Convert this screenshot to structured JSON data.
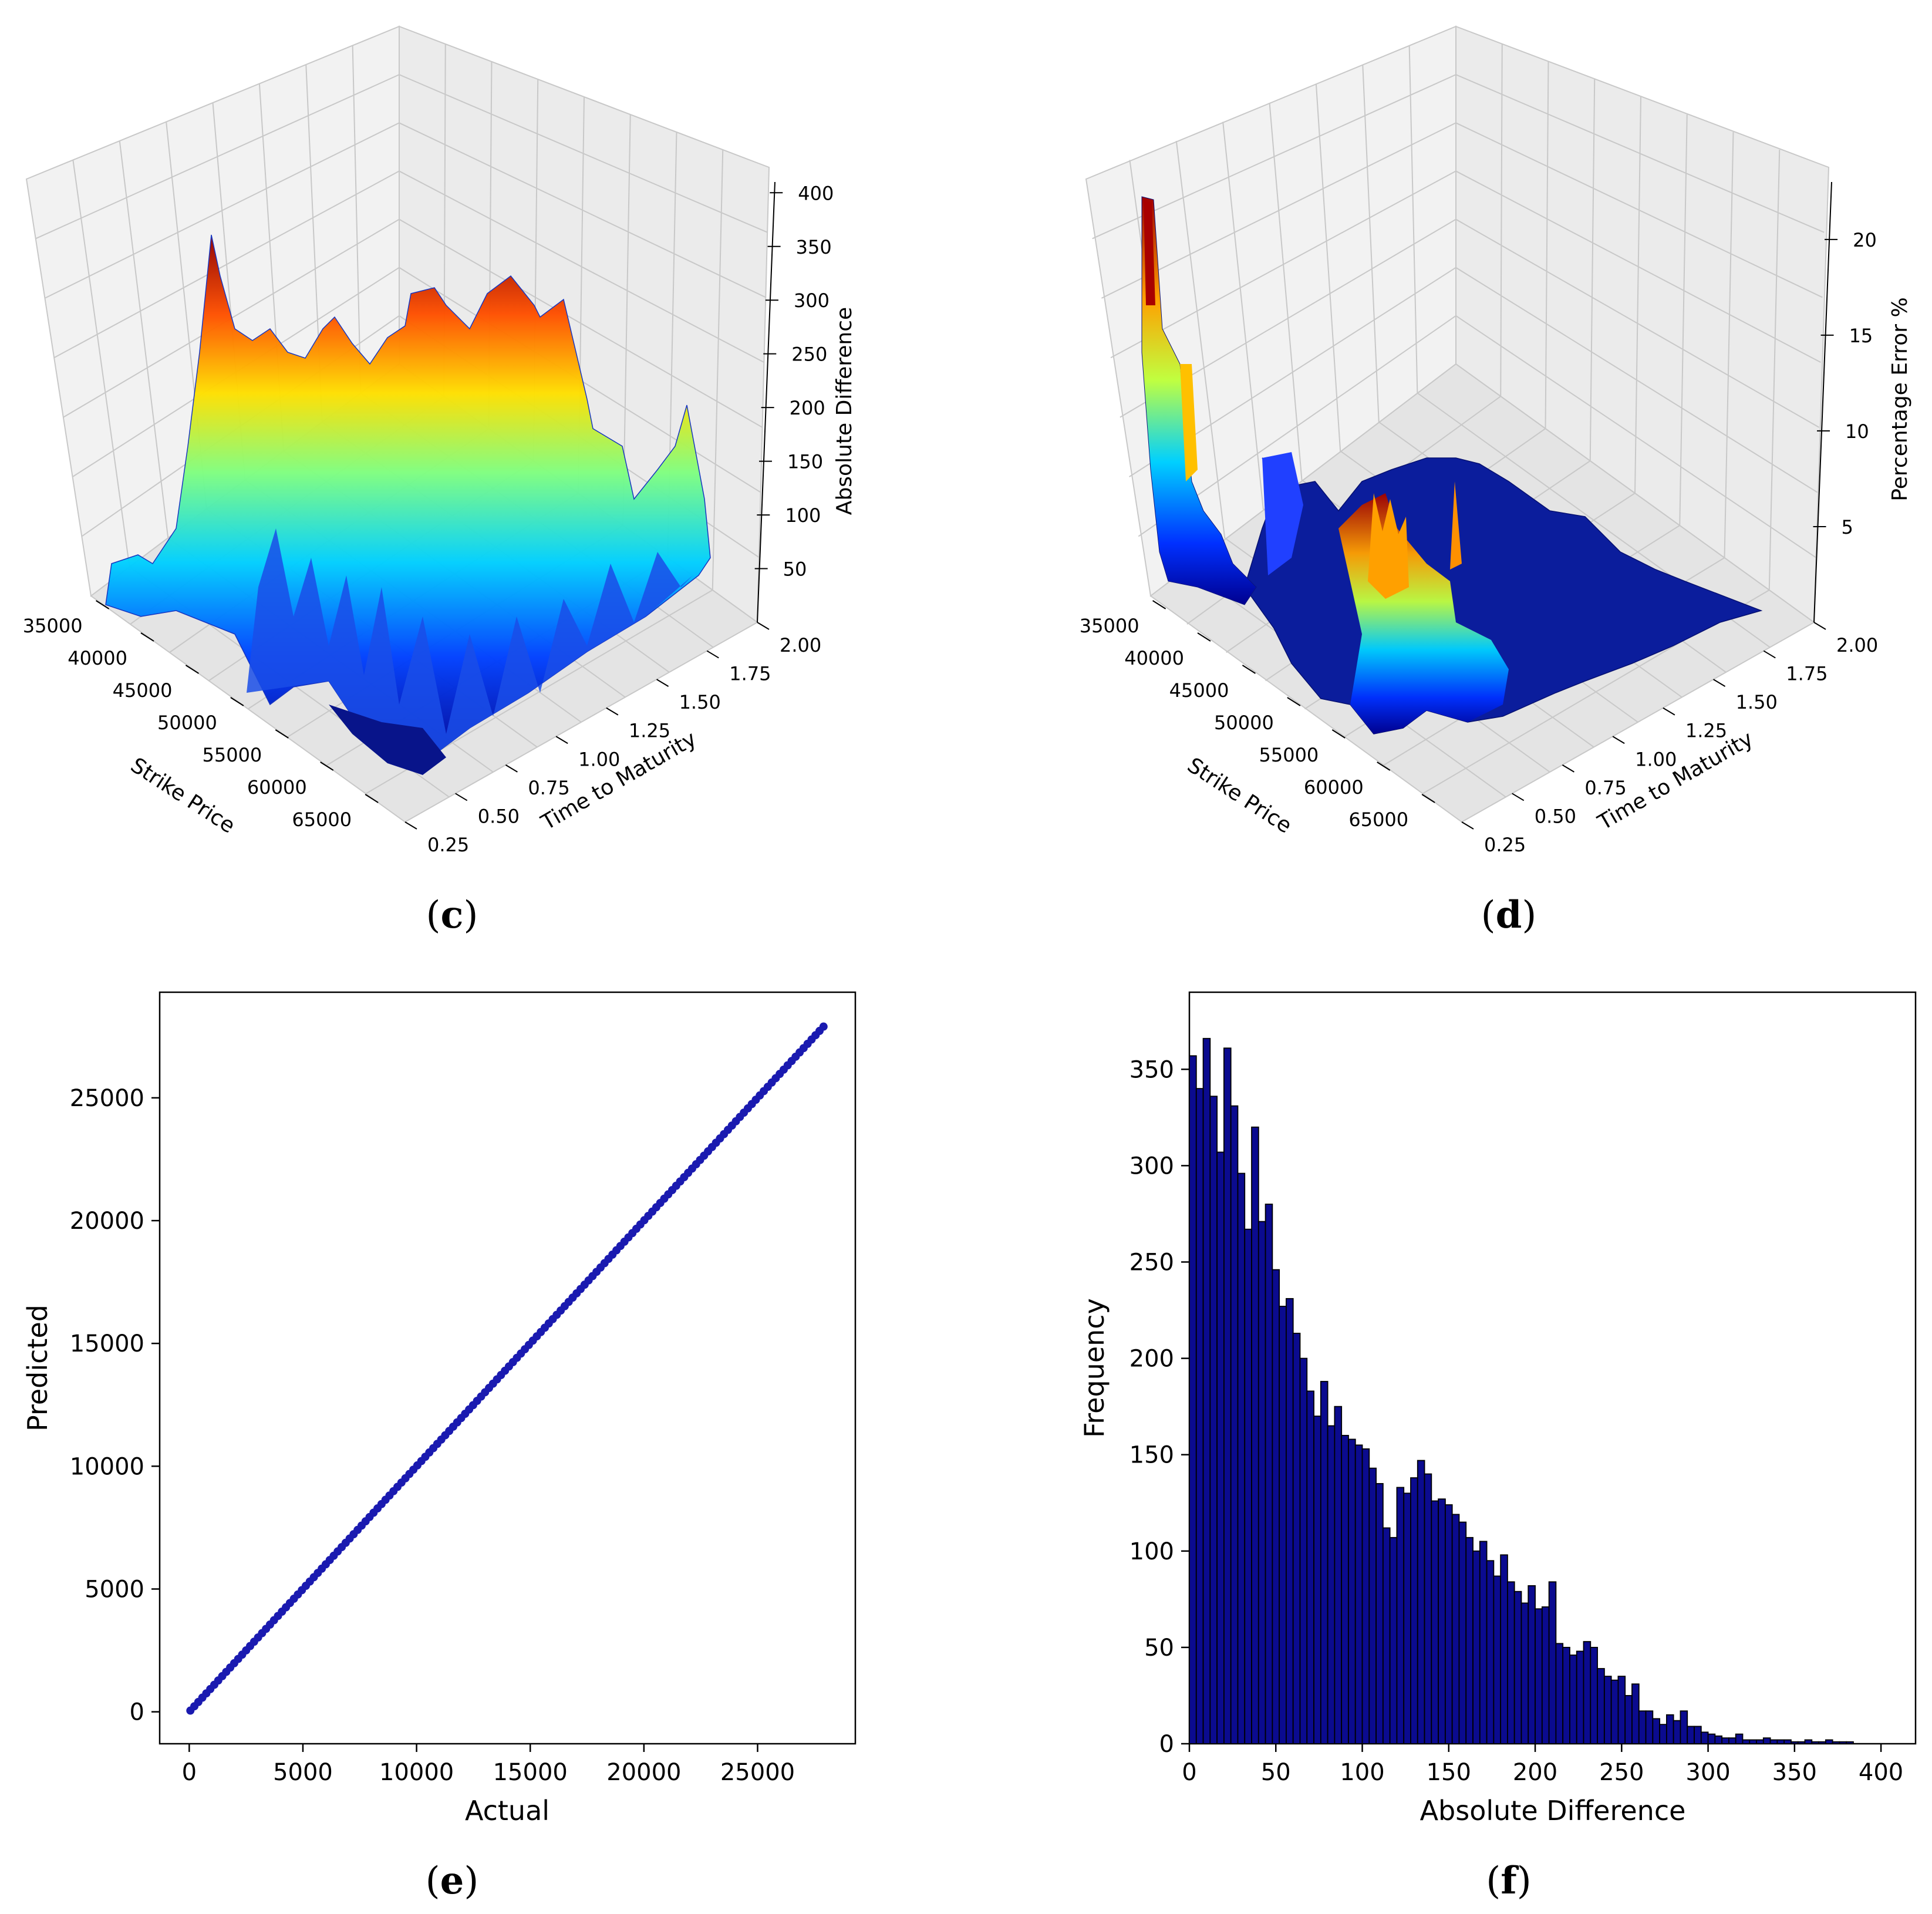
{
  "panels": {
    "c": {
      "caption_open": "(",
      "caption_letter": "c",
      "caption_close": ")"
    },
    "d": {
      "caption_open": "(",
      "caption_letter": "d",
      "caption_close": ")"
    },
    "e": {
      "caption_open": "(",
      "caption_letter": "e",
      "caption_close": ")"
    },
    "f": {
      "caption_open": "(",
      "caption_letter": "f",
      "caption_close": ")"
    }
  },
  "colors": {
    "scatter": "#1a1ab0",
    "bars": "#0b0b8f",
    "bar_edge": "#000000",
    "pane_grid": "#c8c8c8",
    "pane_fill": "#f2f2f2"
  },
  "chart_data": [
    {
      "id": "c",
      "type": "surface3d",
      "title": "",
      "xlabel": "Strike Price",
      "ylabel": "Time to Maturity",
      "zlabel": "Absolute Difference",
      "xticks": [
        "35000",
        "40000",
        "45000",
        "50000",
        "55000",
        "60000",
        "65000"
      ],
      "yticks": [
        "0.25",
        "0.50",
        "0.75",
        "1.00",
        "1.25",
        "1.50",
        "1.75",
        "2.00"
      ],
      "zticks": [
        "50",
        "100",
        "150",
        "200",
        "250",
        "300",
        "350",
        "400"
      ],
      "xlim": [
        33000,
        68000
      ],
      "ylim": [
        0.25,
        2.0
      ],
      "zlim": [
        0,
        410
      ],
      "colormap": "jet"
    },
    {
      "id": "d",
      "type": "surface3d",
      "title": "",
      "xlabel": "Strike Price",
      "ylabel": "Time to Maturity",
      "zlabel": "Percentage Error %",
      "xticks": [
        "35000",
        "40000",
        "45000",
        "50000",
        "55000",
        "60000",
        "65000"
      ],
      "yticks": [
        "0.25",
        "0.50",
        "0.75",
        "1.00",
        "1.25",
        "1.50",
        "1.75",
        "2.00"
      ],
      "zticks": [
        "5",
        "10",
        "15",
        "20"
      ],
      "xlim": [
        33000,
        68000
      ],
      "ylim": [
        0.25,
        2.0
      ],
      "zlim": [
        0,
        23
      ],
      "colormap": "jet"
    },
    {
      "id": "e",
      "type": "scatter",
      "title": "",
      "xlabel": "Actual",
      "ylabel": "Predicted",
      "xticks": [
        0,
        5000,
        10000,
        15000,
        20000,
        25000
      ],
      "yticks": [
        0,
        5000,
        10000,
        15000,
        20000,
        25000
      ],
      "xlim": [
        -1300,
        29300
      ],
      "ylim": [
        -1300,
        29300
      ],
      "x_range": [
        50,
        27900
      ],
      "note": "points lie along y = x"
    },
    {
      "id": "f",
      "type": "bar",
      "title": "",
      "xlabel": "Absolute Difference",
      "ylabel": "Frequency",
      "xticks": [
        0,
        50,
        100,
        150,
        200,
        250,
        300,
        350,
        400
      ],
      "yticks": [
        0,
        50,
        100,
        150,
        200,
        250,
        300,
        350
      ],
      "xlim": [
        0,
        420
      ],
      "ylim": [
        0,
        390
      ],
      "bin_width": 4,
      "values": [
        357,
        340,
        366,
        336,
        307,
        361,
        331,
        296,
        267,
        320,
        271,
        280,
        246,
        227,
        231,
        213,
        200,
        183,
        170,
        188,
        165,
        175,
        160,
        158,
        155,
        153,
        143,
        135,
        112,
        107,
        133,
        130,
        138,
        147,
        140,
        126,
        127,
        124,
        119,
        115,
        107,
        100,
        105,
        95,
        87,
        98,
        84,
        79,
        73,
        82,
        70,
        71,
        84,
        52,
        50,
        46,
        48,
        53,
        50,
        39,
        35,
        33,
        35,
        25,
        31,
        17,
        17,
        13,
        10,
        15,
        12,
        17,
        9,
        9,
        6,
        5,
        4,
        3,
        3,
        5,
        2,
        2,
        2,
        3,
        2,
        2,
        2,
        1,
        1,
        2,
        1,
        1,
        2,
        1,
        1,
        1,
        0,
        0,
        0,
        0,
        0,
        0,
        0,
        0,
        0
      ]
    }
  ]
}
